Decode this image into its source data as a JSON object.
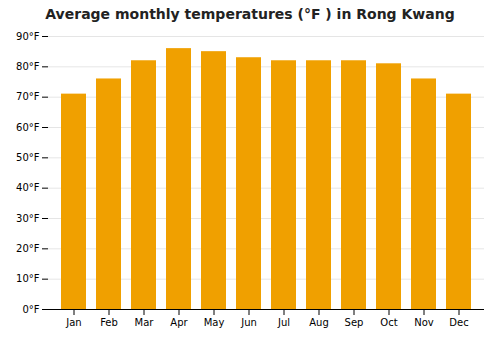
{
  "chart_data": {
    "type": "bar",
    "title": "Average monthly temperatures (°F ) in Rong Kwang",
    "categories": [
      "Jan",
      "Feb",
      "Mar",
      "Apr",
      "May",
      "Jun",
      "Jul",
      "Aug",
      "Sep",
      "Oct",
      "Nov",
      "Dec"
    ],
    "values": [
      71,
      76,
      82,
      86,
      85,
      83,
      82,
      82,
      82,
      81,
      76,
      71
    ],
    "color": "#F0A000",
    "ylim": [
      0,
      90
    ],
    "yticks": [
      {
        "value": 0,
        "label": "0°F"
      },
      {
        "value": 10,
        "label": "10°F"
      },
      {
        "value": 20,
        "label": "20°F"
      },
      {
        "value": 30,
        "label": "30°F"
      },
      {
        "value": 40,
        "label": "40°F"
      },
      {
        "value": 50,
        "label": "50°F"
      },
      {
        "value": 60,
        "label": "60°F"
      },
      {
        "value": 70,
        "label": "70°F"
      },
      {
        "value": 80,
        "label": "80°F"
      },
      {
        "value": 90,
        "label": "90°F"
      }
    ],
    "grid": true
  }
}
